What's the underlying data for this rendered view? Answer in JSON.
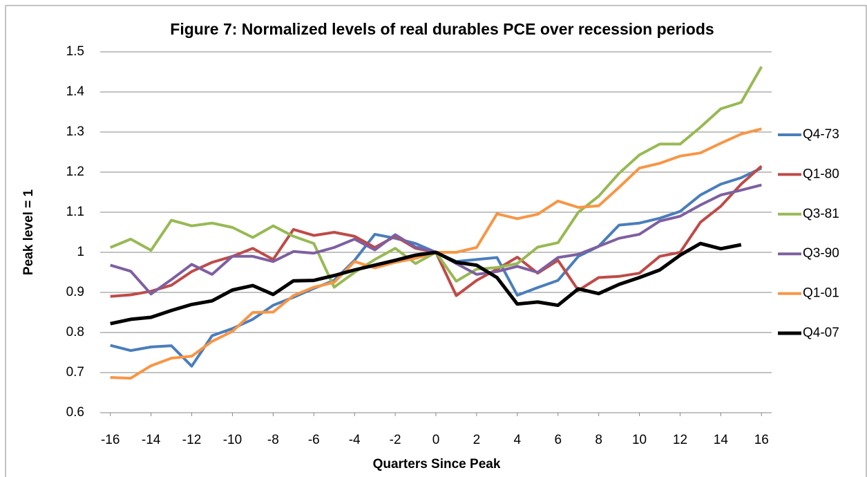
{
  "chart_data": {
    "type": "line",
    "title": "Figure 7: Normalized levels of real durables PCE over recession periods",
    "x_label": "Quarters Since Peak",
    "y_label": "Peak level = 1",
    "x": [
      -16,
      -15,
      -14,
      -13,
      -12,
      -11,
      -10,
      -9,
      -8,
      -7,
      -6,
      -5,
      -4,
      -3,
      -2,
      -1,
      0,
      1,
      2,
      3,
      4,
      5,
      6,
      7,
      8,
      9,
      10,
      11,
      12,
      13,
      14,
      15,
      16
    ],
    "xlim": [
      -16.5,
      16.5
    ],
    "xticks": [
      -16,
      -14,
      -12,
      -10,
      -8,
      -6,
      -4,
      -2,
      0,
      2,
      4,
      6,
      8,
      10,
      12,
      14,
      16
    ],
    "ylim": [
      0.6,
      1.5
    ],
    "yticks": [
      0.6,
      0.7,
      0.8,
      0.9,
      1,
      1.1,
      1.2,
      1.3,
      1.4,
      1.5
    ],
    "grid": true,
    "legend": "right",
    "series": [
      {
        "name": "Q4-73",
        "color": "#4a7ebb",
        "values": [
          0.768,
          0.755,
          0.764,
          0.767,
          0.716,
          0.792,
          0.81,
          0.833,
          0.868,
          0.888,
          0.91,
          0.93,
          0.98,
          1.045,
          1.035,
          1.022,
          1.0,
          0.977,
          0.982,
          0.987,
          0.893,
          0.912,
          0.93,
          0.99,
          1.015,
          1.068,
          1.073,
          1.085,
          1.102,
          1.143,
          1.17,
          1.186,
          1.21
        ]
      },
      {
        "name": "Q1-80",
        "color": "#be4b48",
        "values": [
          0.89,
          0.894,
          0.903,
          0.918,
          0.952,
          0.975,
          0.99,
          1.01,
          0.982,
          1.057,
          1.042,
          1.05,
          1.04,
          1.012,
          1.04,
          1.01,
          1.0,
          0.892,
          0.93,
          0.958,
          0.988,
          0.948,
          0.98,
          0.905,
          0.937,
          0.94,
          0.948,
          0.99,
          1.0,
          1.075,
          1.115,
          1.17,
          1.215
        ]
      },
      {
        "name": "Q3-81",
        "color": "#98b954",
        "values": [
          1.012,
          1.033,
          1.005,
          1.08,
          1.066,
          1.073,
          1.062,
          1.037,
          1.066,
          1.04,
          1.022,
          0.913,
          0.95,
          0.982,
          1.01,
          0.972,
          1.0,
          0.928,
          0.958,
          0.962,
          0.972,
          1.013,
          1.024,
          1.1,
          1.14,
          1.197,
          1.243,
          1.27,
          1.27,
          1.312,
          1.358,
          1.374,
          1.463
        ]
      },
      {
        "name": "Q3-90",
        "color": "#7d60a0",
        "values": [
          0.968,
          0.953,
          0.896,
          0.932,
          0.97,
          0.945,
          0.99,
          0.99,
          0.977,
          1.002,
          0.998,
          1.012,
          1.033,
          1.006,
          1.044,
          1.013,
          1.0,
          0.972,
          0.945,
          0.952,
          0.965,
          0.95,
          0.987,
          0.995,
          1.015,
          1.035,
          1.045,
          1.078,
          1.09,
          1.118,
          1.143,
          1.155,
          1.168
        ]
      },
      {
        "name": "Q1-01",
        "color": "#f79646",
        "values": [
          0.688,
          0.686,
          0.717,
          0.736,
          0.741,
          0.778,
          0.803,
          0.85,
          0.851,
          0.892,
          0.913,
          0.925,
          0.977,
          0.961,
          0.975,
          0.985,
          1.0,
          1.0,
          1.012,
          1.096,
          1.084,
          1.095,
          1.128,
          1.112,
          1.116,
          1.162,
          1.21,
          1.222,
          1.24,
          1.248,
          1.272,
          1.295,
          1.308
        ]
      },
      {
        "name": "Q4-07",
        "color": "#000000",
        "values": [
          0.822,
          0.833,
          0.838,
          0.855,
          0.87,
          0.879,
          0.906,
          0.917,
          0.895,
          0.929,
          0.93,
          0.942,
          0.956,
          0.968,
          0.98,
          0.993,
          1.0,
          0.975,
          0.968,
          0.937,
          0.871,
          0.876,
          0.868,
          0.909,
          0.897,
          0.92,
          0.937,
          0.956,
          0.993,
          1.022,
          1.009,
          1.019,
          null
        ]
      }
    ]
  }
}
